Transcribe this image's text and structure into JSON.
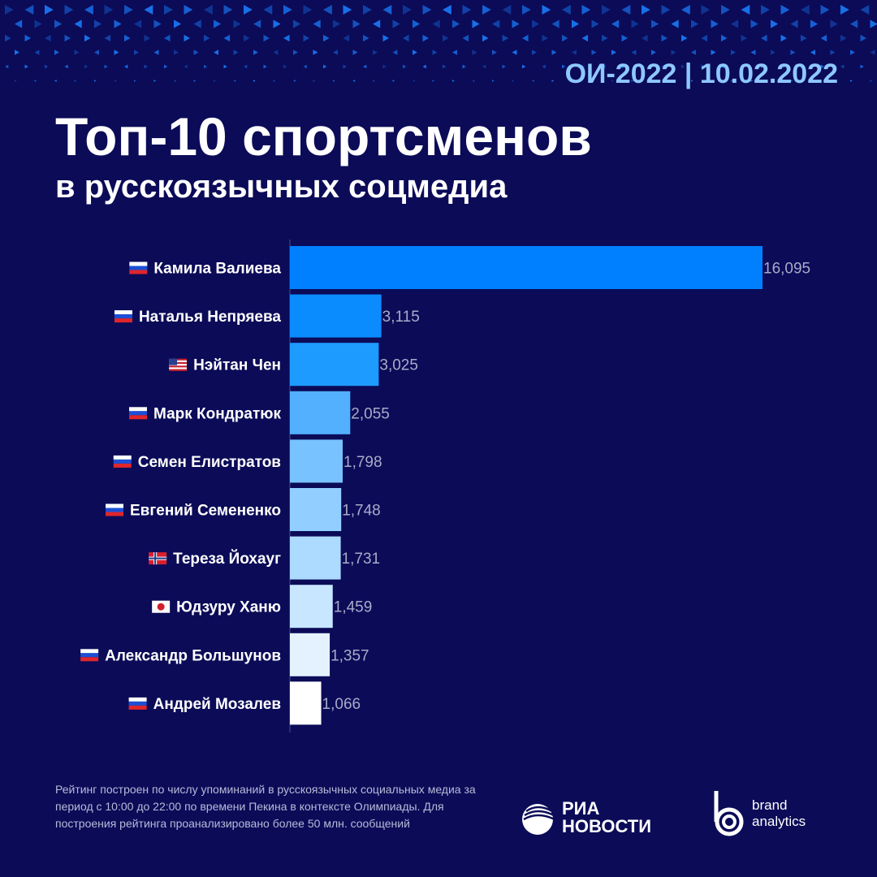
{
  "header": {
    "date": "ОИ-2022 | 10.02.2022",
    "title": "Топ-10 спортсменов",
    "subtitle": "в русскоязычных соцмедиа"
  },
  "chart_data": {
    "type": "bar",
    "orientation": "horizontal",
    "title": "Топ-10 спортсменов в русскоязычных соцмедиа",
    "categories": [
      "Камила Валиева",
      "Наталья Непряева",
      "Нэйтан Чен",
      "Марк Кондратюк",
      "Семен Елистратов",
      "Евгений Семененко",
      "Тереза Йохауг",
      "Юдзуру Ханю",
      "Александр Большунов",
      "Андрей Мозалев"
    ],
    "flags": [
      "ru",
      "ru",
      "us",
      "ru",
      "ru",
      "ru",
      "no",
      "jp",
      "ru",
      "ru"
    ],
    "values": [
      16095,
      3115,
      3025,
      2055,
      1798,
      1748,
      1731,
      1459,
      1357,
      1066
    ],
    "labels": [
      "16,095",
      "3,115",
      "3,025",
      "2,055",
      "1,798",
      "1,748",
      "1,731",
      "1,459",
      "1,357",
      "1,066"
    ],
    "colors": [
      "#0080ff",
      "#0a8cff",
      "#1e9bff",
      "#52b0ff",
      "#78c2ff",
      "#92ceff",
      "#addbff",
      "#c8e6ff",
      "#e4f2ff",
      "#ffffff"
    ],
    "xlim": [
      0,
      16095
    ]
  },
  "footer": {
    "note": "Рейтинг построен по числу упоминаний в русскоязычных социальных медиа за период с 10:00 до 22:00 по времени Пекина в контексте Олимпиады. Для построения рейтинга проанализировано более 50 млн. сообщений",
    "ria_line1": "РИА",
    "ria_line2": "НОВОСТИ",
    "ba_line1": "brand",
    "ba_line2": "analytics"
  }
}
